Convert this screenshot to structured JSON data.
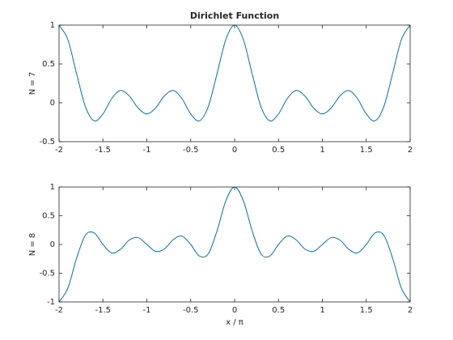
{
  "chart_data": [
    {
      "type": "line",
      "title": "Dirichlet Function",
      "ylabel": "N = 7",
      "x": [
        -2,
        -1.9,
        -1.8,
        -1.7,
        -1.6,
        -1.5,
        -1.4,
        -1.3,
        -1.2,
        -1.1,
        -1,
        -0.9,
        -0.8,
        -0.7,
        -0.6,
        -0.5,
        -0.4,
        -0.3,
        -0.2,
        -0.1,
        0,
        0.1,
        0.2,
        0.3,
        0.4,
        0.5,
        0.6,
        0.7,
        0.8,
        0.9,
        1,
        1.1,
        1.2,
        1.3,
        1.4,
        1.5,
        1.6,
        1.7,
        1.8,
        1.9,
        2
      ],
      "series": [
        {
          "color": "#0072bd",
          "values": [
            1,
            0.8137,
            0.374,
            -0.0492,
            -0.2312,
            -0.1429,
            0.0546,
            0.1584,
            0.0883,
            -0.0657,
            -0.1429,
            -0.0657,
            0.0883,
            0.1584,
            0.0546,
            -0.1429,
            -0.2312,
            -0.0492,
            0.374,
            0.8137,
            1,
            0.8137,
            0.374,
            -0.0492,
            -0.2312,
            -0.1429,
            0.0546,
            0.1584,
            0.0883,
            -0.0657,
            -0.1429,
            -0.0657,
            0.0883,
            0.1584,
            0.0546,
            -0.1429,
            -0.2312,
            -0.0492,
            0.374,
            0.8137,
            1
          ]
        }
      ],
      "xlim": [
        -2,
        2
      ],
      "xticks": [
        -2,
        -1.5,
        -1,
        -0.5,
        0,
        0.5,
        1,
        1.5,
        2
      ],
      "ylim": [
        -0.5,
        1
      ],
      "yticks": [
        -0.5,
        0,
        0.5,
        1
      ]
    },
    {
      "type": "line",
      "xlabel": "x / π",
      "ylabel": "N = 8",
      "x": [
        -2,
        -1.9,
        -1.8,
        -1.7,
        -1.6,
        -1.5,
        -1.4,
        -1.3,
        -1.2,
        -1.1,
        -1,
        -0.9,
        -0.8,
        -0.7,
        -0.6,
        -0.5,
        -0.4,
        -0.3,
        -0.2,
        -0.1,
        0,
        0.1,
        0.2,
        0.3,
        0.4,
        0.5,
        0.6,
        0.7,
        0.8,
        0.9,
        1,
        1.1,
        1.2,
        1.3,
        1.4,
        1.5,
        1.6,
        1.7,
        1.8,
        1.9,
        2
      ],
      "series": [
        {
          "color": "#0072bd",
          "values": [
            -1,
            -0.76,
            -0.2378,
            0.1618,
            0.2023,
            0,
            -0.147,
            -0.0825,
            0.0773,
            0.1204,
            0,
            -0.1204,
            -0.0773,
            0.0825,
            0.147,
            0,
            -0.2023,
            -0.1618,
            0.2378,
            0.76,
            1,
            0.76,
            0.2378,
            -0.1618,
            -0.2023,
            0,
            0.147,
            0.0825,
            -0.0773,
            -0.1204,
            0,
            0.1204,
            0.0773,
            -0.0825,
            -0.147,
            0,
            0.2023,
            0.1618,
            -0.2378,
            -0.76,
            -1
          ]
        }
      ],
      "xlim": [
        -2,
        2
      ],
      "xticks": [
        -2,
        -1.5,
        -1,
        -0.5,
        0,
        0.5,
        1,
        1.5,
        2
      ],
      "ylim": [
        -1,
        1
      ],
      "yticks": [
        -1,
        -0.5,
        0,
        0.5,
        1
      ]
    }
  ]
}
